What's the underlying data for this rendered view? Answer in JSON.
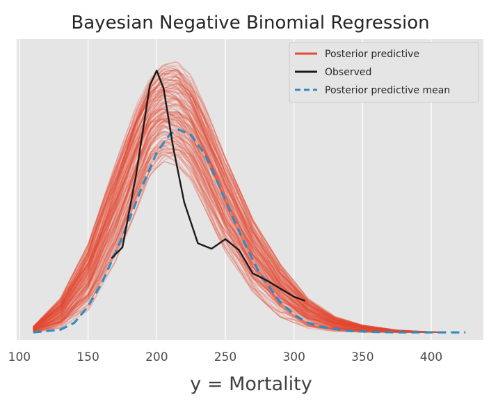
{
  "chart_data": {
    "type": "line",
    "title": "Bayesian Negative Binomial Regression",
    "xlabel": "y = Mortality",
    "ylabel": "",
    "xlim": [
      98,
      438
    ],
    "ylim": [
      -0.00055,
      0.0214
    ],
    "xticks": [
      100,
      150,
      200,
      250,
      300,
      350,
      400
    ],
    "yaxis_visible": false,
    "grid": true,
    "legend_position": "top-right",
    "colors": {
      "background": "#e5e5e5",
      "grid": "#ffffff",
      "posterior_predictive": "#e24a33",
      "observed": "#1a1a1a",
      "posterior_predictive_mean": "#348abd"
    },
    "series": [
      {
        "name": "Posterior predictive",
        "kind": "many-draws",
        "style": "solid",
        "x": [
          110,
          130,
          150,
          170,
          185,
          195,
          205,
          215,
          225,
          235,
          250,
          270,
          290,
          310,
          330,
          350,
          375,
          400,
          410
        ],
        "y_min": [
          0.0,
          0.0004,
          0.0018,
          0.0055,
          0.0092,
          0.0118,
          0.0128,
          0.0125,
          0.0114,
          0.0094,
          0.0062,
          0.0032,
          0.0013,
          0.0004,
          0.00012,
          4e-05,
          1e-05,
          0.0,
          0.0
        ],
        "y_max": [
          0.0004,
          0.0024,
          0.0062,
          0.012,
          0.0162,
          0.0182,
          0.0192,
          0.0194,
          0.0184,
          0.0162,
          0.0124,
          0.008,
          0.0048,
          0.0024,
          0.0011,
          0.0005,
          0.00015,
          3e-05,
          1e-05
        ]
      },
      {
        "name": "Observed",
        "style": "solid",
        "x": [
          167,
          175,
          185,
          195,
          200,
          205,
          212,
          220,
          230,
          240,
          250,
          260,
          270,
          280,
          290,
          300,
          308
        ],
        "y": [
          0.0054,
          0.0062,
          0.0115,
          0.018,
          0.0191,
          0.0178,
          0.0135,
          0.0095,
          0.0065,
          0.0061,
          0.0068,
          0.006,
          0.0043,
          0.0038,
          0.0032,
          0.0026,
          0.0023
        ]
      },
      {
        "name": "Posterior predictive mean",
        "style": "dashed",
        "x": [
          110,
          130,
          140,
          150,
          160,
          170,
          180,
          190,
          200,
          210,
          216,
          225,
          235,
          245,
          255,
          265,
          275,
          290,
          300,
          310,
          320,
          340,
          360,
          380,
          400,
          425
        ],
        "y": [
          0.0,
          0.0002,
          0.0007,
          0.0019,
          0.0036,
          0.0058,
          0.0082,
          0.0108,
          0.0131,
          0.0145,
          0.0148,
          0.0144,
          0.013,
          0.0108,
          0.0085,
          0.0063,
          0.0043,
          0.0022,
          0.0013,
          0.0007,
          0.0004,
          0.0001,
          3e-05,
          0.0,
          0.0,
          0.0
        ]
      }
    ]
  }
}
